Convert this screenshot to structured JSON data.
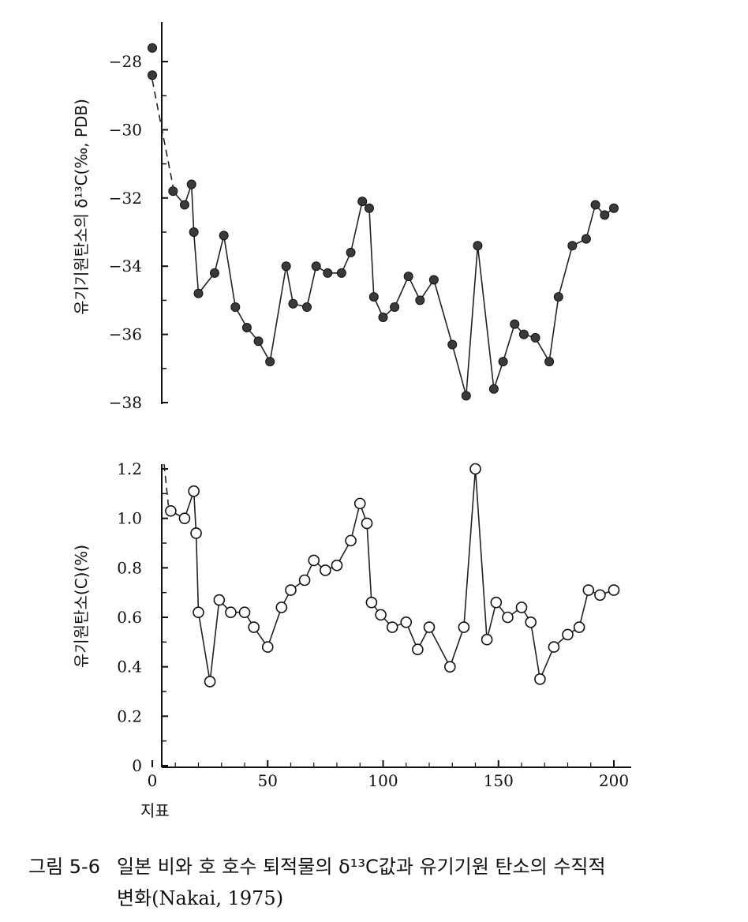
{
  "chart_data": [
    {
      "type": "line",
      "ylabel": "유기기원탄소의 δ¹³C(‰, PDB)",
      "ylim": [
        -38,
        -27
      ],
      "yticks": [
        -28,
        -30,
        -32,
        -34,
        -36,
        -38
      ],
      "ytick_labels": [
        "−28",
        "−30",
        "−32",
        "−34",
        "−36",
        "−38"
      ],
      "marker": "filled-circle",
      "color": "#333333",
      "x": [
        0,
        0,
        9,
        14,
        17,
        18,
        20,
        27,
        31,
        36,
        41,
        46,
        51,
        58,
        61,
        67,
        71,
        76,
        82,
        86,
        91,
        94,
        96,
        100,
        105,
        111,
        116,
        122,
        130,
        136,
        141,
        148,
        152,
        157,
        161,
        166,
        172,
        176,
        182,
        188,
        192,
        196,
        200
      ],
      "y": [
        -27.6,
        -28.4,
        -31.8,
        -32.2,
        -31.6,
        -33.0,
        -34.8,
        -34.2,
        -33.1,
        -35.2,
        -35.8,
        -36.2,
        -36.8,
        -34.0,
        -35.1,
        -35.2,
        -34.0,
        -34.2,
        -34.2,
        -33.6,
        -32.1,
        -32.3,
        -34.9,
        -35.5,
        -35.2,
        -34.3,
        -35.0,
        -34.4,
        -36.3,
        -37.8,
        -33.4,
        -37.6,
        -36.8,
        -35.7,
        -36.0,
        -36.1,
        -36.8,
        -34.9,
        -33.4,
        -33.2,
        -32.2,
        -32.5,
        -32.3
      ],
      "dashed_segment": "between first points and x=9"
    },
    {
      "type": "line",
      "ylabel": "유기원탄소(C)(%)",
      "ylim": [
        0,
        1.2
      ],
      "yticks": [
        0,
        0.2,
        0.4,
        0.6,
        0.8,
        1.0,
        1.2
      ],
      "ytick_labels": [
        "0",
        "0.2",
        "0.4",
        "0.6",
        "0.8",
        "1.0",
        "1.2"
      ],
      "xlabel": "지표",
      "xlim": [
        0,
        200
      ],
      "xticks": [
        0,
        50,
        100,
        150,
        200
      ],
      "xtick_labels": [
        "0",
        "50",
        "100",
        "150",
        "200"
      ],
      "marker": "open-circle",
      "color": "#333333",
      "x": [
        8,
        14,
        18,
        19,
        20,
        25,
        29,
        34,
        40,
        44,
        50,
        56,
        60,
        66,
        70,
        75,
        80,
        86,
        90,
        93,
        95,
        99,
        104,
        110,
        115,
        120,
        129,
        135,
        140,
        145,
        149,
        154,
        160,
        164,
        168,
        174,
        180,
        185,
        189,
        194,
        200
      ],
      "y": [
        1.03,
        1.0,
        1.11,
        0.94,
        0.62,
        0.34,
        0.67,
        0.62,
        0.62,
        0.56,
        0.48,
        0.64,
        0.71,
        0.75,
        0.83,
        0.79,
        0.81,
        0.91,
        1.06,
        0.98,
        0.66,
        0.61,
        0.56,
        0.58,
        0.47,
        0.56,
        0.4,
        0.56,
        1.2,
        0.51,
        0.66,
        0.6,
        0.64,
        0.58,
        0.35,
        0.48,
        0.53,
        0.56,
        0.71,
        0.69,
        0.71
      ],
      "dashed_segment": "from top-left toward x=8"
    }
  ],
  "caption": {
    "number": "그림 5-6",
    "line1": "일본 비와 호 호수 퇴적물의 δ¹³C값과 유기기원 탄소의 수직적",
    "line2": "변화(Nakai, 1975)"
  }
}
